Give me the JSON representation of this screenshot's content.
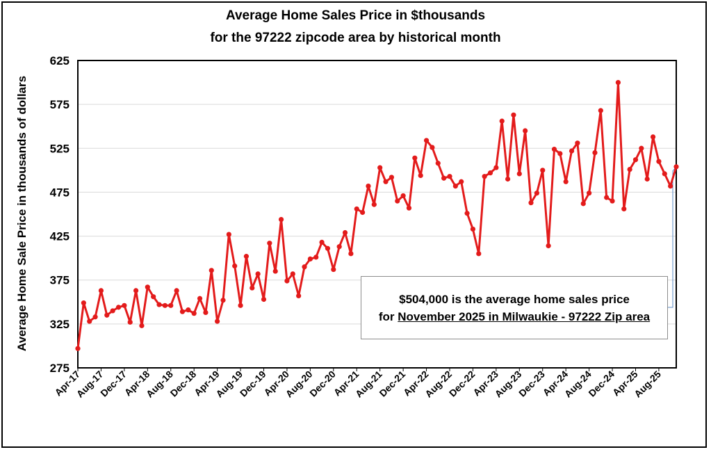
{
  "chart_data": {
    "type": "line",
    "title": "Average Home Sales Price in $thousands",
    "subtitle": "for the 97222 zipcode area by historical month",
    "ylabel": "Average Home Sale Price in thousands of dollars",
    "xlabel": "",
    "ylim": [
      275,
      625
    ],
    "yticks": [
      275,
      325,
      375,
      425,
      475,
      525,
      575,
      625
    ],
    "grid": true,
    "line_color": "#e31b1b",
    "x_tick_labels": [
      "Apr-17",
      "Aug-17",
      "Dec-17",
      "Apr-18",
      "Aug-18",
      "Dec-18",
      "Apr-19",
      "Aug-19",
      "Dec-19",
      "Apr-20",
      "Aug-20",
      "Dec-20",
      "Apr-21",
      "Aug-21",
      "Dec-21",
      "Apr-22",
      "Aug-22",
      "Dec-22",
      "Apr-23",
      "Aug-23",
      "Dec-23",
      "Apr-24",
      "Aug-24",
      "Dec-24",
      "Apr-25",
      "Aug-25"
    ],
    "x_start": "Apr-17",
    "x_end": "Nov-25",
    "values": [
      297,
      349,
      328,
      333,
      363,
      335,
      340,
      344,
      346,
      327,
      363,
      323,
      367,
      356,
      347,
      346,
      346,
      363,
      339,
      341,
      337,
      354,
      338,
      386,
      328,
      352,
      427,
      391,
      346,
      402,
      366,
      382,
      353,
      417,
      385,
      444,
      374,
      382,
      357,
      390,
      399,
      401,
      418,
      411,
      387,
      413,
      429,
      405,
      456,
      452,
      482,
      461,
      503,
      487,
      492,
      465,
      471,
      457,
      514,
      494,
      534,
      526,
      508,
      491,
      493,
      482,
      487,
      451,
      433,
      405,
      493,
      497,
      503,
      556,
      490,
      563,
      496,
      545,
      463,
      474,
      500,
      414,
      524,
      519,
      487,
      522,
      531,
      462,
      474,
      520,
      568,
      469,
      465,
      600,
      456,
      501,
      512,
      525,
      490,
      538,
      510,
      496,
      482,
      504
    ],
    "callout_line1": "$504,000 is the average home sales price",
    "callout_line2_prefix": "for ",
    "callout_line2_underlined": "November 2025 in Milwaukie - 97222 Zip area"
  }
}
